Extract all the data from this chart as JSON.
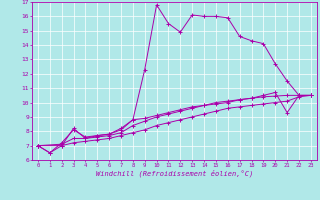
{
  "xlabel": "Windchill (Refroidissement éolien,°C)",
  "background_color": "#b0e8e8",
  "grid_color": "#ffffff",
  "line_color": "#aa00aa",
  "xlim": [
    -0.5,
    23.5
  ],
  "ylim": [
    6,
    17
  ],
  "xticks": [
    0,
    1,
    2,
    3,
    4,
    5,
    6,
    7,
    8,
    9,
    10,
    11,
    12,
    13,
    14,
    15,
    16,
    17,
    18,
    19,
    20,
    21,
    22,
    23
  ],
  "yticks": [
    6,
    7,
    8,
    9,
    10,
    11,
    12,
    13,
    14,
    15,
    16,
    17
  ],
  "series1": [
    [
      0,
      7.0
    ],
    [
      1,
      6.5
    ],
    [
      2,
      7.0
    ],
    [
      3,
      8.2
    ],
    [
      4,
      7.5
    ],
    [
      5,
      7.7
    ],
    [
      6,
      7.8
    ],
    [
      7,
      8.2
    ],
    [
      8,
      8.8
    ],
    [
      9,
      12.3
    ],
    [
      10,
      16.8
    ],
    [
      11,
      15.5
    ],
    [
      12,
      14.9
    ],
    [
      13,
      16.1
    ],
    [
      14,
      16.0
    ],
    [
      15,
      16.0
    ],
    [
      16,
      15.9
    ],
    [
      17,
      14.6
    ],
    [
      18,
      14.3
    ],
    [
      19,
      14.1
    ],
    [
      20,
      12.7
    ],
    [
      21,
      11.5
    ],
    [
      22,
      10.5
    ],
    [
      23,
      10.5
    ]
  ],
  "series2": [
    [
      0,
      7.0
    ],
    [
      1,
      6.5
    ],
    [
      2,
      7.2
    ],
    [
      3,
      8.1
    ],
    [
      4,
      7.6
    ],
    [
      5,
      7.7
    ],
    [
      6,
      7.8
    ],
    [
      7,
      8.1
    ],
    [
      8,
      8.8
    ],
    [
      9,
      8.9
    ],
    [
      10,
      9.1
    ],
    [
      11,
      9.3
    ],
    [
      12,
      9.5
    ],
    [
      13,
      9.7
    ],
    [
      14,
      9.8
    ],
    [
      15,
      9.9
    ],
    [
      16,
      10.0
    ],
    [
      17,
      10.2
    ],
    [
      18,
      10.3
    ],
    [
      19,
      10.5
    ],
    [
      20,
      10.7
    ],
    [
      21,
      9.3
    ],
    [
      22,
      10.5
    ],
    [
      23,
      10.5
    ]
  ],
  "series3": [
    [
      0,
      7.0
    ],
    [
      2,
      7.1
    ],
    [
      3,
      7.5
    ],
    [
      4,
      7.5
    ],
    [
      5,
      7.6
    ],
    [
      6,
      7.7
    ],
    [
      7,
      7.9
    ],
    [
      8,
      8.4
    ],
    [
      9,
      8.7
    ],
    [
      10,
      9.0
    ],
    [
      11,
      9.2
    ],
    [
      12,
      9.4
    ],
    [
      13,
      9.6
    ],
    [
      14,
      9.8
    ],
    [
      15,
      10.0
    ],
    [
      16,
      10.1
    ],
    [
      17,
      10.2
    ],
    [
      18,
      10.3
    ],
    [
      19,
      10.4
    ],
    [
      20,
      10.45
    ],
    [
      21,
      10.5
    ],
    [
      22,
      10.5
    ],
    [
      23,
      10.5
    ]
  ],
  "series4": [
    [
      0,
      7.0
    ],
    [
      2,
      7.0
    ],
    [
      3,
      7.2
    ],
    [
      4,
      7.3
    ],
    [
      5,
      7.4
    ],
    [
      6,
      7.5
    ],
    [
      7,
      7.7
    ],
    [
      8,
      7.9
    ],
    [
      9,
      8.1
    ],
    [
      10,
      8.4
    ],
    [
      11,
      8.6
    ],
    [
      12,
      8.8
    ],
    [
      13,
      9.0
    ],
    [
      14,
      9.2
    ],
    [
      15,
      9.4
    ],
    [
      16,
      9.6
    ],
    [
      17,
      9.7
    ],
    [
      18,
      9.8
    ],
    [
      19,
      9.9
    ],
    [
      20,
      10.0
    ],
    [
      21,
      10.1
    ],
    [
      22,
      10.4
    ],
    [
      23,
      10.5
    ]
  ]
}
